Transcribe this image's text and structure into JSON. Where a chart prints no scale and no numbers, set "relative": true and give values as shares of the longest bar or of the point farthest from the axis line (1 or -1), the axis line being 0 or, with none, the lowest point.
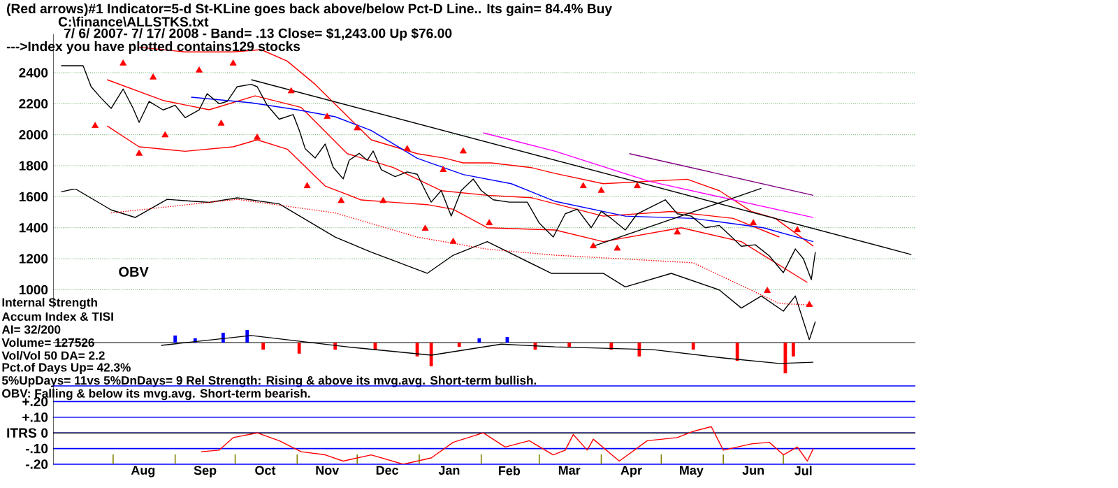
{
  "chart_data": [
    {
      "type": "line",
      "title": "(Red arrows)#1 Indicator=5-d St-KLine goes back above/below Pct-D Line.. Its gain= 84.4% Buy",
      "subtitle": "7/ 6/ 2007- 7/ 17/ 2008 -   Band= .13   Close= $1,243.00   Up $76.00",
      "annotations": [
        "C:\\finance\\ALLSTKS.txt",
        "--->Index you have plotted contains129 stocks"
      ],
      "xlim": [
        "2007-07-02",
        "2008-09-05"
      ],
      "ylim": [
        880,
        2650
      ],
      "yticks": [
        1000,
        1200,
        1400,
        1600,
        1800,
        2000,
        2200,
        2400
      ],
      "grid": "y",
      "tick_labels": "y",
      "series": [
        {
          "color": "#ff0000",
          "x": [
            "2007-08-14",
            "2007-09-06",
            "2007-09-30",
            "2007-10-14",
            "2007-10-27",
            "2007-11-10",
            "2007-11-24",
            "2007-12-08",
            "2007-12-31",
            "2008-01-14",
            "2008-01-23",
            "2008-02-06",
            "2008-02-26",
            "2008-03-09",
            "2008-04-02",
            "2008-05-14",
            "2008-05-30",
            "2008-06-15",
            "2008-06-27",
            "2008-07-16"
          ],
          "values": [
            2564,
            2534,
            2534,
            2549,
            2475,
            2325,
            2146,
            1967,
            1878,
            1848,
            1818,
            1818,
            1788,
            1750,
            1684,
            1713,
            1639,
            1505,
            1460,
            1281
          ]
        },
        {
          "color": "#ff0000",
          "x": [
            "2007-07-29",
            "2007-08-26",
            "2007-09-18",
            "2007-10-11",
            "2007-11-03",
            "2007-11-26",
            "2007-12-19",
            "2008-01-12",
            "2008-02-04",
            "2008-02-26",
            "2008-04-02",
            "2008-05-06",
            "2008-06-06",
            "2008-06-29"
          ],
          "values": [
            2355,
            2221,
            2161,
            2251,
            2176,
            1878,
            1788,
            1639,
            1609,
            1594,
            1475,
            1505,
            1460,
            1340
          ]
        },
        {
          "color": "#ff0000",
          "x": [
            "2007-07-29",
            "2007-08-14",
            "2007-09-06",
            "2007-09-30",
            "2007-10-12",
            "2007-10-27",
            "2007-11-15",
            "2007-12-03",
            "2007-12-19",
            "2008-01-05",
            "2008-01-18",
            "2008-02-04",
            "2008-03-09",
            "2008-04-02",
            "2008-05-11",
            "2008-06-10",
            "2008-07-13"
          ],
          "values": [
            2057,
            1922,
            1893,
            1922,
            1967,
            1907,
            1669,
            1579,
            1564,
            1549,
            1519,
            1400,
            1385,
            1310,
            1400,
            1310,
            1047
          ]
        },
        {
          "color": "#0000ff",
          "x": [
            "2007-09-09",
            "2007-10-09",
            "2007-11-01",
            "2007-11-20",
            "2007-12-08",
            "2007-12-31",
            "2008-01-23",
            "2008-02-16",
            "2008-03-09",
            "2008-04-13",
            "2008-05-17",
            "2008-06-21",
            "2008-07-16"
          ],
          "values": [
            2242,
            2206,
            2161,
            2116,
            2027,
            1848,
            1743,
            1684,
            1570,
            1475,
            1460,
            1400,
            1310
          ]
        },
        {
          "color": "#000000",
          "x": [
            "2007-10-09",
            "2008-09-03"
          ],
          "values": [
            2355,
            1227
          ]
        },
        {
          "color": "#000000",
          "x": [
            "2008-03-28",
            "2008-06-20"
          ],
          "values": [
            1281,
            1654
          ]
        },
        {
          "color": "#ff00ff",
          "x": [
            "2008-02-02",
            "2008-03-09",
            "2008-04-25",
            "2008-07-16"
          ],
          "values": [
            2012,
            1893,
            1699,
            1466
          ]
        },
        {
          "color": "#800080",
          "x": [
            "2008-04-15",
            "2008-07-16"
          ],
          "values": [
            1878,
            1609
          ]
        },
        {
          "color": "#000000",
          "x": [
            "2007-07-06",
            "2007-07-17",
            "2007-07-21",
            "2007-07-26",
            "2007-07-31",
            "2007-08-06",
            "2007-08-11",
            "2007-08-14",
            "2007-08-19",
            "2007-08-26",
            "2007-09-01",
            "2007-09-06",
            "2007-09-13",
            "2007-09-17",
            "2007-09-23",
            "2007-09-27",
            "2007-10-02",
            "2007-10-09",
            "2007-10-12",
            "2007-10-17",
            "2007-10-23",
            "2007-10-30",
            "2007-11-02",
            "2007-11-05",
            "2007-11-10",
            "2007-11-15",
            "2007-11-19",
            "2007-11-24",
            "2007-11-27",
            "2007-12-02",
            "2007-12-06",
            "2007-12-09",
            "2007-12-13",
            "2007-12-20",
            "2007-12-26",
            "2007-12-31",
            "2008-01-04",
            "2008-01-07",
            "2008-01-12",
            "2008-01-17",
            "2008-01-22",
            "2008-01-28",
            "2008-02-01",
            "2008-02-07",
            "2008-02-15",
            "2008-02-24",
            "2008-03-01",
            "2008-03-08",
            "2008-03-14",
            "2008-03-20",
            "2008-03-27",
            "2008-04-01",
            "2008-04-06",
            "2008-04-13",
            "2008-04-19",
            "2008-04-26",
            "2008-05-03",
            "2008-05-09",
            "2008-05-16",
            "2008-05-23",
            "2008-05-30",
            "2008-06-04",
            "2008-06-10",
            "2008-06-17",
            "2008-06-24",
            "2008-07-01",
            "2008-07-07",
            "2008-07-11",
            "2008-07-15",
            "2008-07-17"
          ],
          "values": [
            2445,
            2445,
            2310,
            2236,
            2170,
            2295,
            2170,
            2080,
            2215,
            2160,
            2190,
            2110,
            2160,
            2265,
            2200,
            2215,
            2310,
            2325,
            2310,
            2190,
            2100,
            2130,
            2030,
            1910,
            1850,
            1940,
            1790,
            1715,
            1835,
            1880,
            1835,
            1895,
            1775,
            1730,
            1760,
            1745,
            1640,
            1565,
            1640,
            1475,
            1640,
            1715,
            1640,
            1580,
            1565,
            1565,
            1430,
            1340,
            1490,
            1520,
            1400,
            1505,
            1460,
            1385,
            1490,
            1535,
            1580,
            1490,
            1475,
            1400,
            1415,
            1355,
            1280,
            1290,
            1218,
            1110,
            1263,
            1200,
            1065,
            1243
          ]
        },
        {
          "type": "scatter",
          "marker": "triangle",
          "color": "#ff0000",
          "x": [
            "2007-07-23",
            "2007-08-14",
            "2007-08-27",
            "2007-09-24",
            "2007-10-12",
            "2007-11-06",
            "2007-11-23",
            "2007-12-14",
            "2008-01-04",
            "2008-01-18",
            "2008-02-05",
            "2008-03-28",
            "2008-04-09",
            "2008-05-09",
            "2008-06-23"
          ],
          "values": [
            2057,
            1878,
            1997,
            2072,
            1982,
            1669,
            1573,
            1573,
            1394,
            1310,
            1430,
            1281,
            1266,
            1370,
            993
          ]
        },
        {
          "type": "scatter",
          "marker": "triangle",
          "color": "#ff0000",
          "x": [
            "2007-08-06",
            "2007-08-21",
            "2007-09-13",
            "2007-09-30",
            "2007-10-29",
            "2007-11-16",
            "2007-12-01",
            "2007-12-26",
            "2008-01-13",
            "2008-01-23",
            "2008-03-23",
            "2008-04-01",
            "2008-04-19",
            "2008-06-16",
            "2008-07-08",
            "2008-07-14"
          ],
          "values": [
            2460,
            2370,
            2415,
            2460,
            2281,
            2116,
            2042,
            1908,
            1773,
            1893,
            1669,
            1639,
            1669,
            1430,
            1385,
            903
          ]
        }
      ]
    },
    {
      "type": "line",
      "relative": true,
      "xlim": [
        "2007-07-02",
        "2008-09-05"
      ],
      "tick_labels": false,
      "series": [
        {
          "name": "OBV",
          "color": "#000000",
          "x": [
            "2007-07-06",
            "2007-07-13",
            "2007-07-31",
            "2007-08-12",
            "2007-08-28",
            "2007-09-18",
            "2007-10-02",
            "2007-10-23",
            "2007-11-20",
            "2007-12-08",
            "2008-01-05",
            "2008-01-18",
            "2008-02-04",
            "2008-03-07",
            "2008-04-02",
            "2008-04-13",
            "2008-05-06",
            "2008-05-30",
            "2008-06-10",
            "2008-06-20",
            "2008-07-01",
            "2008-07-07",
            "2008-07-14",
            "2008-07-17"
          ],
          "values": [
            0.98,
            1,
            0.86,
            0.81,
            0.93,
            0.91,
            0.94,
            0.9,
            0.68,
            0.58,
            0.44,
            0.56,
            0.65,
            0.44,
            0.44,
            0.35,
            0.44,
            0.33,
            0.21,
            0.29,
            0.19,
            0.29,
            0,
            0.12
          ]
        },
        {
          "color": "#ff0000",
          "line_style": "dotted",
          "x": [
            "2007-07-31",
            "2007-10-02",
            "2007-11-20",
            "2007-12-31",
            "2008-02-04",
            "2008-03-09",
            "2008-05-17",
            "2008-06-29",
            "2008-07-16"
          ],
          "values": [
            0.84,
            0.93,
            0.84,
            0.68,
            0.6,
            0.56,
            0.51,
            0.24,
            0.23
          ]
        }
      ]
    },
    {
      "type": "bar",
      "relative": true,
      "xlim": [
        "2007-07-02",
        "2008-09-05"
      ],
      "tick_labels": false,
      "annotations": [
        "Internal Strength",
        "Accum Index & TISI",
        "AI= 32/200",
        "Volume= 127526",
        "Vol/Vol 50 DA= 2.2",
        "Pct.of Days Up= 42.3%",
        "5%UpDays= 11vs 5%DnDays= 9   Rel Strength: Rising & above its mvg.avg. Short-term bullish.",
        "OBV: Falling & below its mvg.avg. Short-term bearish."
      ],
      "series": [
        {
          "x": [
            "2007-08-25",
            "2007-09-01",
            "2007-09-11",
            "2007-09-25",
            "2007-10-07",
            "2007-10-15",
            "2007-11-02",
            "2007-11-20",
            "2007-12-10",
            "2007-12-31",
            "2008-01-07",
            "2008-01-21",
            "2008-01-31",
            "2008-02-14",
            "2008-02-28",
            "2008-03-16",
            "2008-04-06",
            "2008-04-20",
            "2008-05-17",
            "2008-06-08",
            "2008-07-02",
            "2008-07-06",
            "2008-07-16"
          ],
          "values": [
            0,
            0.23,
            0.14,
            0.32,
            0.41,
            -0.23,
            -0.36,
            -0.23,
            -0.23,
            -0.45,
            -0.77,
            -0.14,
            0.14,
            0.18,
            -0.23,
            -0.14,
            -0.23,
            -0.45,
            -0.23,
            -0.59,
            -1,
            -0.45,
            0
          ],
          "colors": [
            "#0000ff",
            "#0000ff",
            "#0000ff",
            "#0000ff",
            "#0000ff",
            "#ff0000",
            "#ff0000",
            "#ff0000",
            "#ff0000",
            "#ff0000",
            "#ff0000",
            "#ff0000",
            "#0000ff",
            "#0000ff",
            "#ff0000",
            "#ff0000",
            "#ff0000",
            "#ff0000",
            "#ff0000",
            "#ff0000",
            "#ff0000",
            "#ff0000",
            "#ff0000"
          ]
        },
        {
          "type": "line",
          "color": "#000000",
          "x": [
            "2007-08-25",
            "2007-10-09",
            "2007-11-26",
            "2008-01-07",
            "2008-02-11",
            "2008-03-09",
            "2008-04-27",
            "2008-06-01",
            "2008-06-29",
            "2008-07-16"
          ],
          "values": [
            -0.09,
            0.23,
            -0.14,
            -0.41,
            -0.05,
            -0.14,
            -0.23,
            -0.5,
            -0.68,
            -0.64
          ]
        }
      ]
    },
    {
      "type": "line",
      "ylabel": "ITRS",
      "xlim": [
        "2007-07-02",
        "2008-09-05"
      ],
      "ylim": [
        -0.2,
        0.3
      ],
      "grid": "y",
      "yticks": [
        {
          "value": -0.2,
          "label": "-.20"
        },
        {
          "value": -0.1,
          "label": "-.10"
        },
        0,
        {
          "value": 0.1,
          "label": "+.10"
        },
        {
          "value": 0.2,
          "label": "+.20"
        },
        {
          "value": 0.3,
          "label": null
        }
      ],
      "xticks": [
        {
          "value": "2007-08-01",
          "label": null
        },
        {
          "value": "2007-08-16",
          "label": "Aug"
        },
        {
          "value": "2007-09-01",
          "label": null
        },
        {
          "value": "2007-09-16",
          "label": "Sep"
        },
        {
          "value": "2007-10-01",
          "label": null
        },
        {
          "value": "2007-10-16",
          "label": "Oct"
        },
        {
          "value": "2007-11-01",
          "label": null
        },
        {
          "value": "2007-11-16",
          "label": "Nov"
        },
        {
          "value": "2007-12-01",
          "label": null
        },
        {
          "value": "2007-12-16",
          "label": "Dec"
        },
        {
          "value": "2008-01-01",
          "label": null
        },
        {
          "value": "2008-01-16",
          "label": "Jan"
        },
        {
          "value": "2008-02-01",
          "label": null
        },
        {
          "value": "2008-02-15",
          "label": "Feb"
        },
        {
          "value": "2008-03-01",
          "label": null
        },
        {
          "value": "2008-03-16",
          "label": "Mar"
        },
        {
          "value": "2008-04-01",
          "label": null
        },
        {
          "value": "2008-04-16",
          "label": "Apr"
        },
        {
          "value": "2008-05-01",
          "label": null
        },
        {
          "value": "2008-05-16",
          "label": "May"
        },
        {
          "value": "2008-06-01",
          "label": null
        },
        {
          "value": "2008-06-16",
          "label": "Jun"
        },
        {
          "value": "2008-07-01",
          "label": null
        },
        {
          "value": "2008-07-11",
          "label": "Jul"
        }
      ],
      "ref_lines": [
        {
          "axis": "y",
          "value": 0,
          "color": "#000000"
        }
      ],
      "series": [
        {
          "color": "#ff0000",
          "x": [
            "2007-09-14",
            "2007-09-23",
            "2007-09-30",
            "2007-10-12",
            "2007-10-23",
            "2007-11-03",
            "2007-11-15",
            "2007-11-24",
            "2007-12-08",
            "2007-12-24",
            "2008-01-07",
            "2008-01-18",
            "2008-02-02",
            "2008-02-13",
            "2008-02-25",
            "2008-03-08",
            "2008-03-14",
            "2008-03-18",
            "2008-03-25",
            "2008-03-28",
            "2008-04-10",
            "2008-04-24",
            "2008-05-09",
            "2008-05-17",
            "2008-05-26",
            "2008-06-01",
            "2008-06-15",
            "2008-06-24",
            "2008-07-01",
            "2008-07-08",
            "2008-07-13",
            "2008-07-16"
          ],
          "values": [
            -0.12,
            -0.11,
            -0.03,
            0,
            -0.05,
            -0.12,
            -0.14,
            -0.18,
            -0.14,
            -0.2,
            -0.16,
            -0.06,
            0,
            -0.09,
            -0.05,
            -0.14,
            -0.11,
            -0.01,
            -0.11,
            -0.04,
            -0.18,
            -0.05,
            -0.03,
            0.01,
            0.04,
            -0.11,
            -0.07,
            -0.06,
            -0.14,
            -0.09,
            -0.18,
            -0.1
          ]
        }
      ]
    }
  ]
}
